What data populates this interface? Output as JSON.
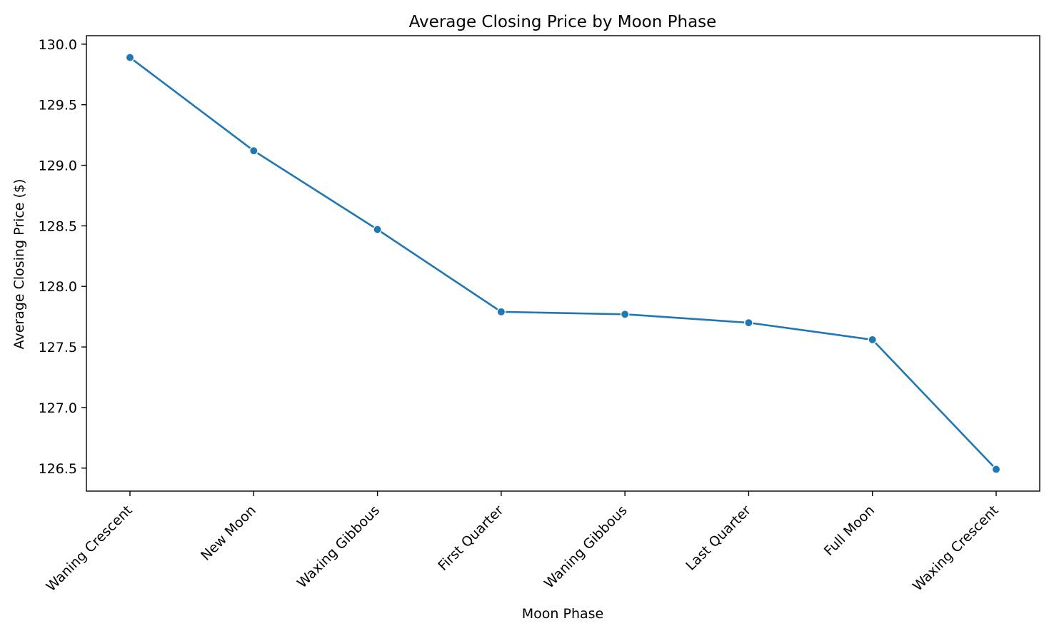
{
  "chart_data": {
    "type": "line",
    "title": "Average Closing Price by Moon Phase",
    "xlabel": "Moon Phase",
    "ylabel": "Average Closing Price ($)",
    "categories": [
      "Waning Crescent",
      "New Moon",
      "Waxing Gibbous",
      "First Quarter",
      "Waning Gibbous",
      "Last Quarter",
      "Full Moon",
      "Waxing Crescent"
    ],
    "series": [
      {
        "values": [
          129.89,
          129.12,
          128.47,
          127.79,
          127.77,
          127.7,
          127.56,
          126.49
        ],
        "color": "#1f77b4"
      }
    ],
    "ylim": [
      126.31,
      130.07
    ],
    "yticks": [
      "126.5",
      "127.0",
      "127.5",
      "128.0",
      "128.5",
      "129.0",
      "129.5",
      "130.0"
    ],
    "grid": false,
    "markers": true
  }
}
